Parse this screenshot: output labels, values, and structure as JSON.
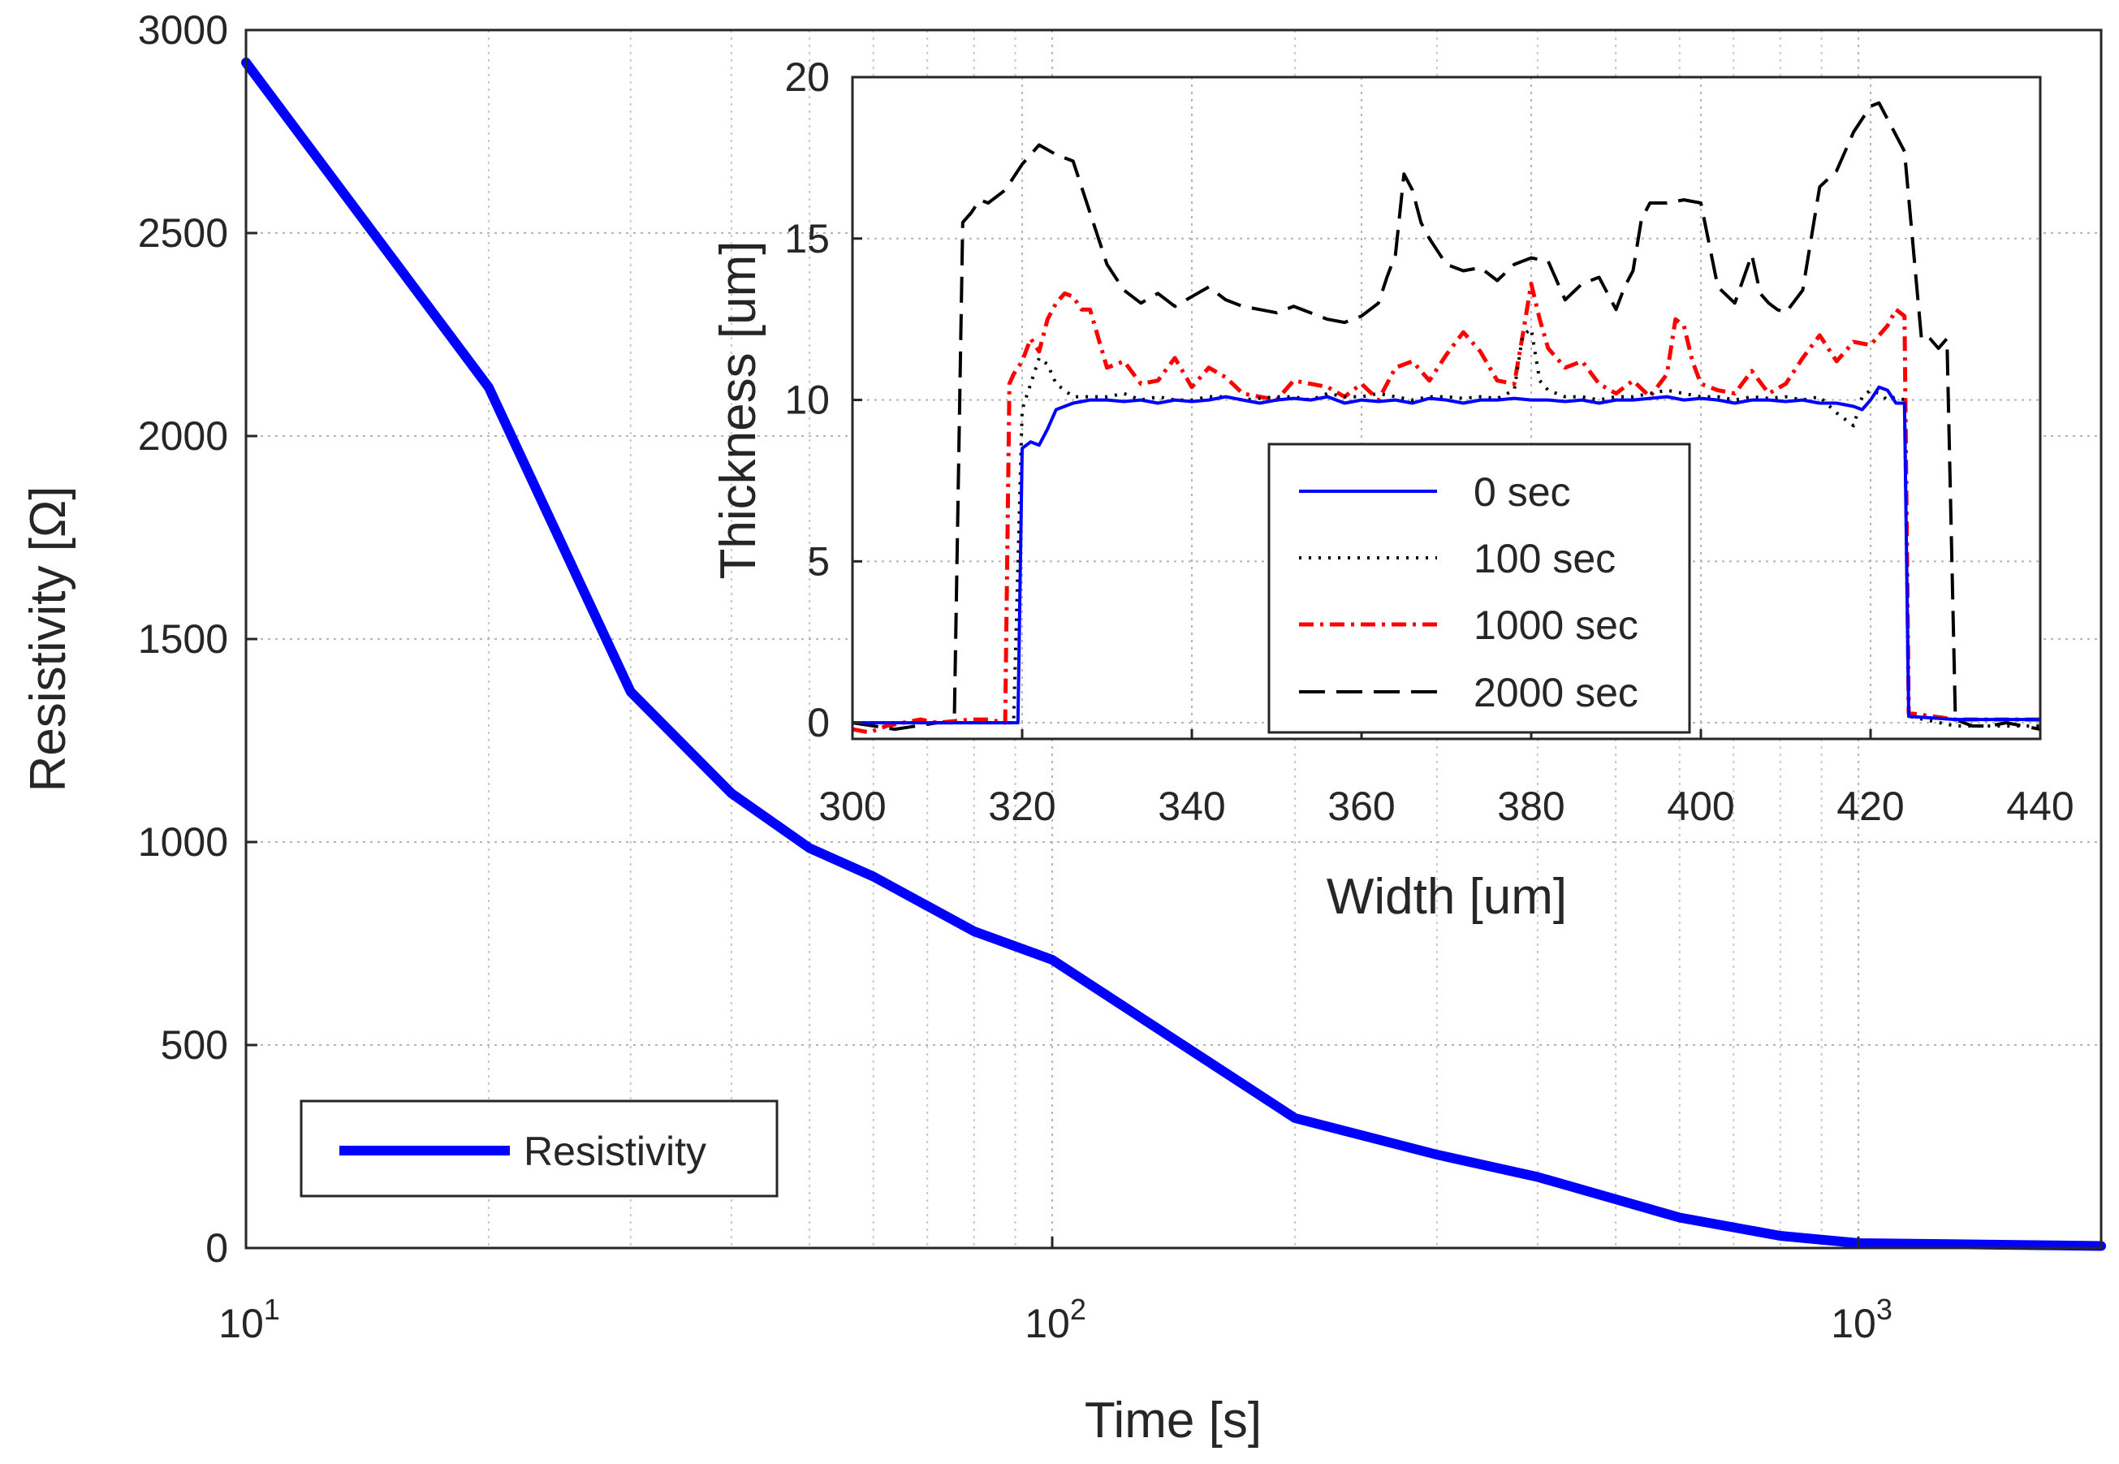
{
  "chart_data": [
    {
      "type": "line",
      "xscale": "log",
      "title": "",
      "xlabel": "Time [s]",
      "ylabel": "Resistivity [Ω]",
      "xlim": [
        10,
        2000
      ],
      "ylim": [
        0,
        3000
      ],
      "x_ticks": [
        {
          "base": "10",
          "exp": "1",
          "value": 10
        },
        {
          "base": "10",
          "exp": "2",
          "value": 100
        },
        {
          "base": "10",
          "exp": "3",
          "value": 1000
        }
      ],
      "y_ticks": [
        "0",
        "500",
        "1000",
        "1500",
        "2000",
        "2500",
        "3000"
      ],
      "grid": true,
      "legend": {
        "position": "bottom-left",
        "entries": [
          "Resistivity"
        ]
      },
      "series": [
        {
          "name": "Resistivity",
          "color": "#0000ff",
          "x": [
            10,
            20,
            30,
            40,
            50,
            60,
            80,
            100,
            200,
            300,
            400,
            600,
            800,
            1000,
            1500,
            2000
          ],
          "values": [
            2920,
            2120,
            1370,
            1120,
            985,
            915,
            780,
            710,
            320,
            230,
            175,
            75,
            30,
            12,
            8,
            5
          ]
        }
      ]
    },
    {
      "type": "line",
      "title": "",
      "xlabel": "Width [um]",
      "ylabel": "Thickness [um]",
      "xlim": [
        300,
        440
      ],
      "ylim": [
        -0.5,
        20
      ],
      "x_ticks": [
        "300",
        "320",
        "340",
        "360",
        "380",
        "400",
        "420",
        "440"
      ],
      "y_ticks": [
        "0",
        "5",
        "10",
        "15",
        "20"
      ],
      "grid": true,
      "legend": {
        "position": "bottom-center",
        "entries": [
          "0 sec",
          "100 sec",
          "1000 sec",
          "2000 sec"
        ]
      },
      "series": [
        {
          "name": "0 sec",
          "color": "#0000ff",
          "style": "solid",
          "x": [
            300,
            310,
            318,
            319.5,
            320,
            321,
            322,
            323,
            324,
            326,
            328,
            330,
            332,
            334,
            336,
            338,
            340,
            342,
            344,
            346,
            348,
            350,
            352,
            354,
            356,
            358,
            360,
            362,
            364,
            366,
            368,
            370,
            372,
            374,
            376,
            378,
            380,
            382,
            384,
            386,
            388,
            390,
            392,
            394,
            396,
            398,
            400,
            402,
            404,
            406,
            408,
            410,
            412,
            414,
            416,
            418,
            419,
            420,
            421,
            422,
            423,
            424,
            424.5,
            430,
            440
          ],
          "values": [
            0,
            0,
            0,
            0,
            8.5,
            8.7,
            8.6,
            9.1,
            9.7,
            9.9,
            10,
            10,
            9.95,
            10,
            9.9,
            10,
            9.95,
            10,
            10.1,
            10,
            9.9,
            10,
            10.05,
            10,
            10.1,
            9.9,
            10,
            9.95,
            10,
            9.9,
            10.05,
            10,
            9.9,
            10,
            10,
            10.05,
            10,
            10,
            9.95,
            10,
            9.9,
            10,
            10,
            10.05,
            10.1,
            10,
            10.05,
            10,
            9.9,
            10,
            10,
            9.95,
            10,
            9.9,
            9.9,
            9.8,
            9.7,
            10,
            10.4,
            10.3,
            9.9,
            9.9,
            0.2,
            0.1,
            0.1
          ]
        },
        {
          "name": "100 sec",
          "color": "#000000",
          "style": "dotted",
          "x": [
            300,
            310,
            318,
            319,
            320,
            321,
            322,
            323,
            324,
            326,
            328,
            330,
            332,
            334,
            336,
            338,
            340,
            342,
            344,
            346,
            348,
            350,
            352,
            354,
            356,
            358,
            360,
            362,
            364,
            366,
            368,
            370,
            372,
            374,
            376,
            378,
            379,
            380,
            381,
            382,
            384,
            386,
            388,
            390,
            392,
            394,
            396,
            398,
            400,
            402,
            404,
            406,
            408,
            410,
            412,
            414,
            416,
            418,
            419,
            420,
            421,
            422,
            423,
            424,
            424.5,
            430,
            440
          ],
          "values": [
            0,
            0,
            0,
            0,
            9.7,
            10.5,
            11.3,
            11.1,
            10.5,
            10.1,
            10.1,
            10.1,
            10.2,
            10,
            10.1,
            10,
            10,
            10.1,
            10.1,
            10,
            10.05,
            10.1,
            10.1,
            10,
            10.2,
            10.1,
            10.1,
            10.2,
            10.1,
            10,
            10.1,
            10.1,
            10.05,
            10.1,
            10.05,
            10.3,
            12,
            12.2,
            10.6,
            10.3,
            10.1,
            10.1,
            10,
            10.1,
            10.1,
            10.2,
            10.3,
            10.2,
            10.1,
            10.1,
            10,
            10.1,
            10.05,
            10.1,
            10,
            10.1,
            9.6,
            9.2,
            10.1,
            10.3,
            10.2,
            10,
            10.1,
            10,
            0.2,
            -0.1,
            -0.1
          ]
        },
        {
          "name": "1000 sec",
          "color": "#ff0000",
          "style": "dashdot",
          "x": [
            300,
            302,
            304,
            306,
            308,
            310,
            312,
            314,
            316,
            318,
            318.5,
            319,
            320,
            321,
            322,
            323,
            324,
            325,
            326,
            327,
            328,
            330,
            332,
            334,
            336,
            338,
            340,
            342,
            344,
            346,
            348,
            350,
            352,
            354,
            356,
            358,
            360,
            362,
            364,
            366,
            368,
            370,
            372,
            374,
            376,
            378,
            379,
            380,
            381,
            382,
            384,
            386,
            388,
            390,
            392,
            394,
            396,
            397,
            398,
            399,
            400,
            402,
            404,
            406,
            408,
            410,
            412,
            414,
            416,
            418,
            420,
            422,
            423,
            424,
            424.5,
            430,
            440
          ],
          "values": [
            -0.2,
            -0.3,
            -0.1,
            0,
            0.1,
            0,
            0.05,
            0.1,
            0.1,
            0,
            10.5,
            10.8,
            11.2,
            11.9,
            11.5,
            12.5,
            13.0,
            13.3,
            13.2,
            12.8,
            12.8,
            11.0,
            11.2,
            10.5,
            10.6,
            11.3,
            10.4,
            11.0,
            10.7,
            10.2,
            10.1,
            10.0,
            10.6,
            10.5,
            10.4,
            10.1,
            10.5,
            10.0,
            11.0,
            11.2,
            10.6,
            11.4,
            12.1,
            11.5,
            10.6,
            10.5,
            12.0,
            13.6,
            12.5,
            11.6,
            11.0,
            11.2,
            10.5,
            10.2,
            10.6,
            10.1,
            10.8,
            12.5,
            12.3,
            11.2,
            10.5,
            10.3,
            10.2,
            10.9,
            10.2,
            10.5,
            11.3,
            12.0,
            11.2,
            11.8,
            11.7,
            12.3,
            12.8,
            12.6,
            0.3,
            0.1,
            0.1
          ]
        },
        {
          "name": "2000 sec",
          "color": "#000000",
          "style": "dashed",
          "x": [
            300,
            305,
            310,
            311,
            312,
            313,
            314,
            315,
            316,
            318,
            320,
            322,
            324,
            326,
            328,
            330,
            332,
            334,
            336,
            338,
            340,
            342,
            344,
            346,
            348,
            350,
            352,
            354,
            356,
            358,
            360,
            362,
            363,
            364,
            365,
            366,
            367,
            368,
            370,
            372,
            374,
            376,
            378,
            380,
            382,
            384,
            386,
            388,
            390,
            391,
            392,
            393,
            394,
            396,
            398,
            400,
            402,
            404,
            406,
            407,
            408,
            409,
            410,
            412,
            414,
            416,
            418,
            420,
            421,
            422,
            424,
            426,
            426.5,
            427,
            428,
            429,
            430,
            432,
            434,
            436,
            440
          ],
          "values": [
            0,
            -0.2,
            0,
            0,
            0,
            15.5,
            15.8,
            16.2,
            16.1,
            16.5,
            17.3,
            17.9,
            17.6,
            17.4,
            15.8,
            14.2,
            13.4,
            13.0,
            13.3,
            12.9,
            13.2,
            13.5,
            13.1,
            12.9,
            12.8,
            12.7,
            12.9,
            12.7,
            12.5,
            12.4,
            12.6,
            13.0,
            13.8,
            14.5,
            17.0,
            16.5,
            15.5,
            15.0,
            14.2,
            14.0,
            14.1,
            13.7,
            14.2,
            14.4,
            14.3,
            13.1,
            13.6,
            13.8,
            12.8,
            13.5,
            14.0,
            15.6,
            16.1,
            16.1,
            16.2,
            16.1,
            13.5,
            13.0,
            14.5,
            13.3,
            13.0,
            12.8,
            12.7,
            13.4,
            16.6,
            17.1,
            18.3,
            19.1,
            19.2,
            18.7,
            17.7,
            11.9,
            12.0,
            11.9,
            11.6,
            11.9,
            0.1,
            -0.1,
            -0.1,
            0,
            -0.2
          ]
        }
      ]
    }
  ]
}
